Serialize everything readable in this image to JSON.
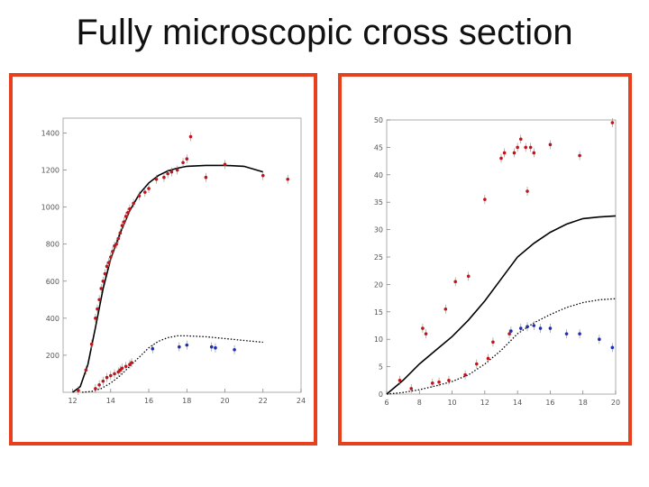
{
  "slide": {
    "title": "Fully microscopic cross section"
  },
  "colors": {
    "frame": "#e8401c",
    "red_points": "#c0141c",
    "blue_points": "#1e2fb4",
    "curve": "#000000"
  },
  "chart_data": [
    {
      "type": "scatter",
      "title": "",
      "xlabel": "",
      "ylabel": "",
      "xlim": [
        11.5,
        24
      ],
      "ylim": [
        0,
        1480
      ],
      "xticks": [
        12,
        14,
        16,
        18,
        20,
        22,
        24
      ],
      "xtick_labels": [
        "12",
        "14",
        "16",
        "18",
        "20",
        "22",
        "24"
      ],
      "yticks": [
        200,
        400,
        600,
        800,
        1000,
        1200,
        1400
      ],
      "ytick_labels": [
        "200",
        "400",
        "600",
        "800",
        "1000",
        "1200",
        "1400"
      ],
      "grid": false,
      "series": [
        {
          "kind": "line",
          "style": "solid",
          "color": "#000000",
          "x": [
            12.0,
            12.4,
            12.8,
            13.2,
            13.6,
            14.0,
            14.5,
            15.0,
            15.5,
            16.0,
            16.5,
            17.0,
            17.5,
            18.0,
            19.0,
            20.0,
            21.0,
            22.0
          ],
          "y": [
            0,
            30,
            150,
            350,
            560,
            720,
            860,
            980,
            1070,
            1130,
            1170,
            1195,
            1210,
            1220,
            1225,
            1225,
            1220,
            1190
          ]
        },
        {
          "kind": "line",
          "style": "dotted",
          "color": "#000000",
          "x": [
            12.5,
            13.0,
            13.5,
            14.0,
            14.5,
            15.0,
            15.5,
            16.0,
            16.5,
            17.0,
            17.5,
            18.0,
            19.0,
            20.0,
            21.0,
            22.0
          ],
          "y": [
            0,
            5,
            20,
            50,
            90,
            140,
            190,
            240,
            275,
            295,
            305,
            305,
            300,
            290,
            280,
            270
          ]
        },
        {
          "kind": "points",
          "color": "#c0141c",
          "x": [
            12.3,
            12.7,
            13.0,
            13.2,
            13.3,
            13.4,
            13.5,
            13.6,
            13.7,
            13.8,
            13.9,
            14.0,
            14.1,
            14.2,
            14.3,
            14.4,
            14.5,
            14.6,
            14.7,
            14.8,
            14.9,
            15.0,
            15.2,
            15.5,
            15.8,
            16.0,
            16.4,
            16.8,
            17.0,
            17.2,
            17.5,
            17.8,
            18.0,
            18.2,
            19.0,
            20.0,
            22.0,
            23.3
          ],
          "y": [
            10,
            120,
            260,
            400,
            450,
            500,
            560,
            600,
            640,
            680,
            700,
            730,
            760,
            790,
            800,
            830,
            860,
            900,
            920,
            950,
            970,
            990,
            1020,
            1060,
            1080,
            1100,
            1150,
            1160,
            1180,
            1190,
            1200,
            1240,
            1260,
            1380,
            1160,
            1230,
            1170,
            1150
          ]
        },
        {
          "kind": "points",
          "color": "#c0141c",
          "x": [
            13.2,
            13.4,
            13.6,
            13.8,
            14.0,
            14.2,
            14.4,
            14.5,
            14.6,
            14.8,
            15.0,
            15.1
          ],
          "y": [
            20,
            40,
            60,
            80,
            90,
            100,
            110,
            120,
            130,
            140,
            150,
            160
          ]
        },
        {
          "kind": "points",
          "color": "#1e2fb4",
          "x": [
            16.2,
            17.6,
            18.0,
            19.3,
            19.5,
            20.5
          ],
          "y": [
            235,
            245,
            255,
            245,
            240,
            230
          ]
        }
      ]
    },
    {
      "type": "scatter",
      "title": "",
      "xlabel": "",
      "ylabel": "",
      "xlim": [
        6,
        20
      ],
      "ylim": [
        0,
        50
      ],
      "xticks": [
        6,
        8,
        10,
        12,
        14,
        16,
        18,
        20
      ],
      "xtick_labels": [
        "6",
        "8",
        "10",
        "12",
        "14",
        "16",
        "18",
        "20"
      ],
      "yticks": [
        0,
        5,
        10,
        15,
        20,
        25,
        30,
        35,
        40,
        45,
        50
      ],
      "ytick_labels": [
        "0",
        "5",
        "10",
        "15",
        "20",
        "25",
        "30",
        "35",
        "40",
        "45",
        "50"
      ],
      "grid": false,
      "series": [
        {
          "kind": "line",
          "style": "solid",
          "color": "#000000",
          "x": [
            6,
            7,
            8,
            9,
            10,
            11,
            12,
            13,
            14,
            15,
            16,
            17,
            18,
            19,
            20
          ],
          "y": [
            0,
            2.5,
            5.5,
            8,
            10.5,
            13.5,
            17,
            21,
            25,
            27.5,
            29.5,
            31,
            32,
            32.3,
            32.5
          ]
        },
        {
          "kind": "line",
          "style": "dotted",
          "color": "#000000",
          "x": [
            6,
            7,
            8,
            9,
            10,
            11,
            12,
            13,
            14,
            15,
            16,
            17,
            18,
            19,
            20
          ],
          "y": [
            0,
            0.3,
            0.8,
            1.5,
            2.3,
            3.5,
            5.5,
            8,
            11,
            13,
            14.5,
            15.8,
            16.7,
            17.2,
            17.4
          ]
        },
        {
          "kind": "points",
          "color": "#c0141c",
          "x": [
            6.8,
            7.5,
            8.2,
            8.4,
            8.8,
            9.2,
            9.6,
            9.8,
            10.2,
            10.8,
            11.0,
            11.5,
            12.0,
            12.2,
            12.5,
            13.0,
            13.2,
            13.5,
            13.8,
            14.0,
            14.2,
            14.5,
            14.6,
            14.8,
            15.0,
            16.0,
            17.8,
            19.8
          ],
          "y": [
            2.5,
            1,
            12,
            11,
            2,
            2.2,
            15.5,
            2.5,
            20.5,
            3.5,
            21.5,
            5.5,
            35.5,
            6.5,
            9.5,
            43,
            44,
            11,
            44,
            45,
            46.5,
            45,
            37,
            45,
            44,
            45.5,
            43.5,
            49.5
          ]
        },
        {
          "kind": "points",
          "color": "#1e2fb4",
          "x": [
            13.6,
            14.2,
            14.6,
            15.0,
            15.4,
            16.0,
            17.0,
            17.8,
            19.0,
            19.8
          ],
          "y": [
            11.5,
            12,
            12.3,
            12.5,
            12,
            12,
            11,
            11,
            10,
            8.5
          ]
        }
      ]
    }
  ]
}
